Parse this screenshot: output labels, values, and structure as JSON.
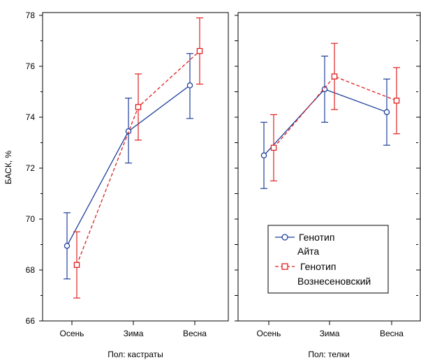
{
  "chart_data": {
    "type": "line",
    "ylabel": "БАСК, %",
    "ylim": [
      66,
      78
    ],
    "yticks": [
      "66",
      "68",
      "70",
      "72",
      "74",
      "76",
      "78"
    ],
    "categories": [
      "Осень",
      "Зима",
      "Весна"
    ],
    "grid": false,
    "legend_placement": "lower-right of right panel",
    "series": [
      {
        "name_line1": "Генотип",
        "name_line2": "Айта",
        "color": "#1f3f9b",
        "marker": "circle",
        "linestyle": "solid"
      },
      {
        "name_line1": "Генотип",
        "name_line2": "Вознесеновский",
        "color": "#e02020",
        "marker": "square",
        "linestyle": "dashed"
      }
    ],
    "panels": [
      {
        "label": "Пол: кастраты",
        "series": [
          {
            "values": [
              68.95,
              73.45,
              75.25
            ],
            "lower": [
              67.65,
              72.2,
              73.95
            ],
            "upper": [
              70.25,
              74.75,
              76.5
            ]
          },
          {
            "values": [
              68.2,
              74.4,
              76.6
            ],
            "lower": [
              66.9,
              73.1,
              75.3
            ],
            "upper": [
              69.5,
              75.7,
              77.9
            ]
          }
        ]
      },
      {
        "label": "Пол: телки",
        "series": [
          {
            "values": [
              72.5,
              75.1,
              74.2
            ],
            "lower": [
              71.2,
              73.8,
              72.9
            ],
            "upper": [
              73.8,
              76.4,
              75.5
            ]
          },
          {
            "values": [
              72.8,
              75.6,
              74.65
            ],
            "lower": [
              71.5,
              74.3,
              73.35
            ],
            "upper": [
              74.1,
              76.9,
              75.95
            ]
          }
        ]
      }
    ]
  }
}
